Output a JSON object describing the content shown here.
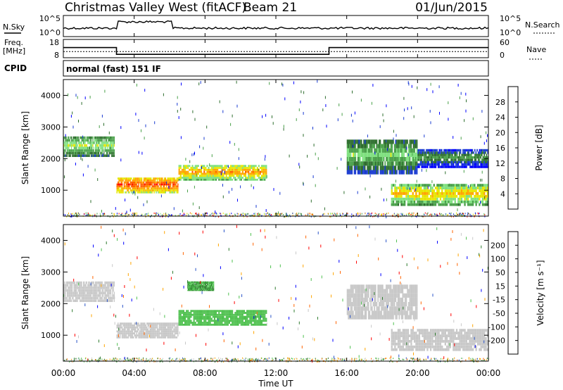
{
  "header": {
    "title": "Christmas Valley West (fitACF)",
    "beam": "Beam 21",
    "date": "01/Jun/2015"
  },
  "panels": {
    "nsky_label": "N.Sky",
    "nsky_ticks": [
      "10^5",
      "10^0"
    ],
    "nsearch_label": "N.Search",
    "nsearch_ticks": [
      "10^5",
      "10^0"
    ],
    "freq_label": "Freq.",
    "freq_unit": "[MHz]",
    "freq_ticks": [
      "18",
      "8"
    ],
    "nave_label": "Nave",
    "nave_ticks": [
      "60",
      "0"
    ],
    "cpid_label": "CPID",
    "cpid_text": "normal (fast) 151 IF"
  },
  "colors": {
    "power": [
      "#0000ff",
      "#1a3bd1",
      "#2e6e2e",
      "#49a049",
      "#7ee07e",
      "#e6e600",
      "#ffa500",
      "#ff6000",
      "#ff0000"
    ],
    "velocity": [
      "#0000ff",
      "#2a54c8",
      "#2e7b2e",
      "#4ec04e",
      "#c8c8c8",
      "#ffa500",
      "#ff6400",
      "#ff0000"
    ],
    "ground_scatter": "#c8c8c8"
  },
  "chart_data": [
    {
      "type": "line",
      "name": "freq-nave",
      "x_unit": "UT hours",
      "freq_steps": [
        [
          0,
          3.0,
          14
        ],
        [
          3.0,
          15.0,
          10
        ],
        [
          15.0,
          24.0,
          14
        ]
      ],
      "nave_steps": [
        [
          0,
          24,
          22
        ]
      ],
      "freq_ylim": [
        8,
        18
      ],
      "nave_ylim": [
        0,
        60
      ]
    },
    {
      "type": "heatmap",
      "name": "power",
      "ylabel": "Slant Range [km]",
      "yticks": [
        "4000",
        "3000",
        "2000",
        "1000"
      ],
      "ylim": [
        180,
        4500
      ],
      "colorbar_label": "Power [dB]",
      "colorbar_ticks": [
        "28",
        "24",
        "20",
        "16",
        "12",
        "8",
        "4"
      ],
      "colorbar_range": [
        0,
        32
      ],
      "bands": [
        {
          "x": [
            0.0,
            2.9
          ],
          "y": [
            2050,
            2700
          ],
          "value": 18
        },
        {
          "x": [
            3.0,
            6.5
          ],
          "y": [
            900,
            1400
          ],
          "value": 28
        },
        {
          "x": [
            6.5,
            11.5
          ],
          "y": [
            1300,
            1800
          ],
          "value": 24
        },
        {
          "x": [
            16.0,
            20.0
          ],
          "y": [
            1500,
            2600
          ],
          "value": 16
        },
        {
          "x": [
            18.5,
            24.0
          ],
          "y": [
            500,
            1200
          ],
          "value": 22
        },
        {
          "x": [
            20.0,
            24.0
          ],
          "y": [
            1700,
            2300
          ],
          "value": 12
        }
      ]
    },
    {
      "type": "heatmap",
      "name": "velocity",
      "ylabel": "Slant Range [km]",
      "yticks": [
        "4000",
        "3000",
        "2000",
        "1000"
      ],
      "ylim": [
        180,
        4500
      ],
      "colorbar_label": "Velocity [m s⁻¹]",
      "colorbar_ticks": [
        "200",
        "100",
        "50",
        "15",
        "-15",
        "-50",
        "-100",
        "-200"
      ],
      "colorbar_range": [
        -250,
        250
      ],
      "bands": [
        {
          "x": [
            0.0,
            2.9
          ],
          "y": [
            2050,
            2700
          ],
          "value": 0
        },
        {
          "x": [
            3.0,
            6.5
          ],
          "y": [
            900,
            1400
          ],
          "value": 0
        },
        {
          "x": [
            6.5,
            11.5
          ],
          "y": [
            1300,
            1800
          ],
          "value": 30
        },
        {
          "x": [
            7.0,
            8.5
          ],
          "y": [
            2400,
            2700
          ],
          "value": 60
        },
        {
          "x": [
            16.0,
            20.0
          ],
          "y": [
            1500,
            2600
          ],
          "value": 0
        },
        {
          "x": [
            18.5,
            24.0
          ],
          "y": [
            500,
            1200
          ],
          "value": 0
        }
      ]
    }
  ],
  "xaxis": {
    "label": "Time UT",
    "ticks": [
      "00:00",
      "04:00",
      "08:00",
      "12:00",
      "16:00",
      "20:00",
      "00:00"
    ],
    "xlim": [
      0,
      24
    ]
  }
}
